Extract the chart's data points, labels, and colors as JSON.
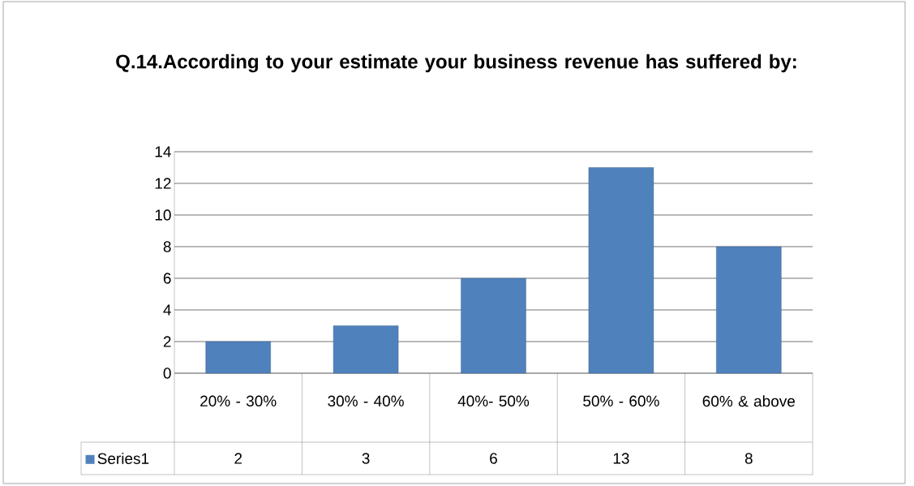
{
  "chart_data": {
    "type": "bar",
    "title": "Q.14.According to your estimate your business revenue has suffered by:",
    "categories": [
      "20% - 30%",
      "30% - 40%",
      "40%- 50%",
      "50% - 60%",
      "60% & above"
    ],
    "series": [
      {
        "name": "Series1",
        "color": "#4f81bd",
        "values": [
          2,
          3,
          6,
          13,
          8
        ]
      }
    ],
    "ylim": [
      0,
      14
    ],
    "yticks": [
      0,
      2,
      4,
      6,
      8,
      10,
      12,
      14
    ],
    "grid": "y",
    "data_labels": true,
    "legend": "bottom left"
  }
}
